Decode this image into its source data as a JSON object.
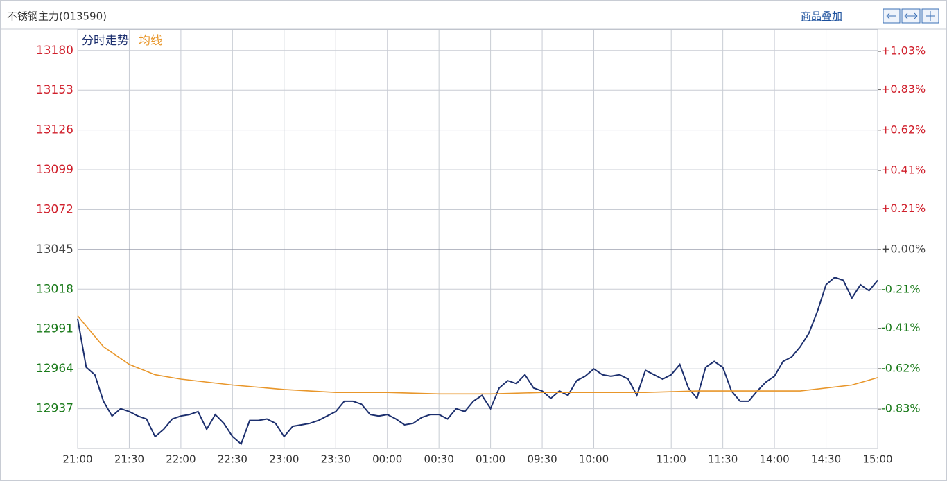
{
  "chart_data": {
    "type": "line",
    "title": "不锈钢主力(013590)",
    "overlay_button": "商品叠加",
    "xlim": [
      0,
      465
    ],
    "xticks": [
      {
        "value": 0,
        "label": "21:00"
      },
      {
        "value": 30,
        "label": "21:30"
      },
      {
        "value": 60,
        "label": "22:00"
      },
      {
        "value": 90,
        "label": "22:30"
      },
      {
        "value": 120,
        "label": "23:00"
      },
      {
        "value": 150,
        "label": "23:30"
      },
      {
        "value": 180,
        "label": "00:00"
      },
      {
        "value": 210,
        "label": "00:30"
      },
      {
        "value": 240,
        "label": "01:00"
      },
      {
        "value": 270,
        "label": "09:30"
      },
      {
        "value": 300,
        "label": "10:00"
      },
      {
        "value": 345,
        "label": "11:00"
      },
      {
        "value": 375,
        "label": "11:30"
      },
      {
        "value": 405,
        "label": "14:00"
      },
      {
        "value": 435,
        "label": "14:30"
      },
      {
        "value": 465,
        "label": "15:00"
      }
    ],
    "ylim": [
      12910,
      13194
    ],
    "yticks": [
      13180,
      13153,
      13126,
      13099,
      13072,
      13045,
      13018,
      12991,
      12964,
      12937
    ],
    "y2lim": [
      -1.035,
      1.142
    ],
    "y2ticks": [
      {
        "value": 1.03,
        "label": "+1.03%"
      },
      {
        "value": 0.83,
        "label": "+0.83%"
      },
      {
        "value": 0.62,
        "label": "+0.62%"
      },
      {
        "value": 0.41,
        "label": "+0.41%"
      },
      {
        "value": 0.21,
        "label": "+0.21%"
      },
      {
        "value": 0.0,
        "label": "+0.00%"
      },
      {
        "value": -0.21,
        "label": "-0.21%"
      },
      {
        "value": -0.41,
        "label": "-0.41%"
      },
      {
        "value": -0.62,
        "label": "-0.62%"
      },
      {
        "value": -0.83,
        "label": "-0.83%"
      }
    ],
    "grid": true,
    "series": [
      {
        "name": "分时走势",
        "color": "#1c2f6e",
        "x": [
          0,
          5,
          10,
          15,
          20,
          25,
          30,
          35,
          40,
          45,
          50,
          55,
          60,
          65,
          70,
          75,
          80,
          85,
          90,
          95,
          100,
          105,
          110,
          115,
          120,
          125,
          130,
          135,
          140,
          145,
          150,
          155,
          160,
          165,
          170,
          175,
          180,
          185,
          190,
          195,
          200,
          205,
          210,
          215,
          220,
          225,
          230,
          235,
          240,
          245,
          250,
          255,
          260,
          265,
          270,
          275,
          280,
          285,
          290,
          295,
          300,
          305,
          310,
          315,
          320,
          325,
          330,
          335,
          340,
          345,
          350,
          355,
          360,
          365,
          370,
          375,
          380,
          385,
          390,
          395,
          400,
          405,
          410,
          415,
          420,
          425,
          430,
          435,
          440,
          445,
          450,
          455,
          460,
          465
        ],
        "values": [
          12998,
          12965,
          12960,
          12942,
          12932,
          12937,
          12935,
          12932,
          12930,
          12918,
          12923,
          12930,
          12932,
          12933,
          12935,
          12923,
          12933,
          12927,
          12918,
          12913,
          12929,
          12929,
          12930,
          12927,
          12918,
          12925,
          12926,
          12927,
          12929,
          12932,
          12935,
          12942,
          12942,
          12940,
          12933,
          12932,
          12933,
          12930,
          12926,
          12927,
          12931,
          12933,
          12933,
          12930,
          12937,
          12935,
          12942,
          12946,
          12937,
          12951,
          12956,
          12954,
          12960,
          12951,
          12949,
          12944,
          12949,
          12946,
          12956,
          12959,
          12964,
          12960,
          12959,
          12960,
          12957,
          12946,
          12963,
          12960,
          12957,
          12960,
          12967,
          12951,
          12944,
          12965,
          12969,
          12965,
          12949,
          12942,
          12942,
          12949,
          12955,
          12959,
          12969,
          12972,
          12979,
          12988,
          13003,
          13021,
          13026,
          13024,
          13012,
          13021,
          13017,
          13024
        ]
      },
      {
        "name": "均线",
        "color": "#e8962a",
        "x": [
          0,
          15,
          30,
          45,
          60,
          90,
          120,
          150,
          180,
          210,
          240,
          270,
          300,
          330,
          360,
          390,
          420,
          450,
          465
        ],
        "values": [
          13000,
          12979,
          12967,
          12960,
          12957,
          12953,
          12950,
          12948,
          12948,
          12947,
          12947,
          12948,
          12948,
          12948,
          12949,
          12949,
          12949,
          12953,
          12958
        ]
      }
    ]
  }
}
